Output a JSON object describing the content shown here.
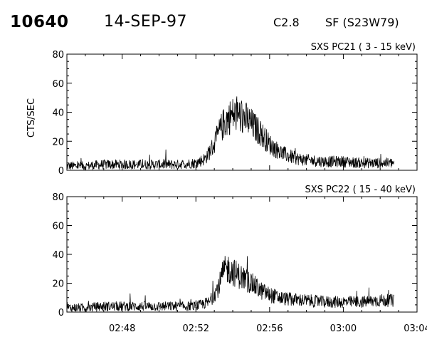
{
  "header": {
    "event_id": "10640",
    "date": "14-SEP-97",
    "flare_class": "C2.8",
    "location": "SF (S23W79)"
  },
  "chart_data": [
    {
      "type": "line",
      "title": "SXS PC21  (  3 - 15 keV)",
      "ylabel": "CTS/SEC",
      "xlabel": "",
      "ylim": [
        0,
        80
      ],
      "xlim": [
        "02:45",
        "03:04"
      ],
      "yticks": [
        "0",
        "20",
        "40",
        "60",
        "80"
      ],
      "xticks": [],
      "grid": false,
      "series": [
        {
          "x": [
            "02:45:00",
            "02:46:00",
            "02:47:00",
            "02:48:00",
            "02:49:00",
            "02:50:00",
            "02:51:00",
            "02:52:00",
            "02:52:30",
            "02:53:00",
            "02:53:15",
            "02:53:30",
            "02:53:45",
            "02:54:00",
            "02:54:15",
            "02:54:30",
            "02:54:45",
            "02:55:00",
            "02:55:30",
            "02:56:00",
            "02:56:30",
            "02:57:00",
            "02:57:30",
            "02:58:00",
            "02:59:00",
            "03:00:00",
            "03:01:00",
            "03:02:00",
            "03:02:45"
          ],
          "values": [
            3,
            3,
            4,
            4,
            4,
            4,
            4,
            5,
            8,
            18,
            26,
            32,
            36,
            38,
            38,
            37,
            35,
            32,
            26,
            18,
            13,
            10,
            8,
            7,
            6,
            6,
            5,
            5,
            5
          ]
        }
      ]
    },
    {
      "type": "line",
      "title": "SXS PC22  ( 15 - 40 keV)",
      "ylabel": "",
      "xlabel": "",
      "ylim": [
        0,
        80
      ],
      "xlim": [
        "02:45",
        "03:04"
      ],
      "yticks": [
        "0",
        "20",
        "40",
        "60",
        "80"
      ],
      "xticks": [
        "02:48",
        "02:52",
        "02:56",
        "03:00",
        "03:04"
      ],
      "grid": false,
      "series": [
        {
          "x": [
            "02:45:00",
            "02:46:00",
            "02:47:00",
            "02:48:00",
            "02:49:00",
            "02:50:00",
            "02:51:00",
            "02:52:00",
            "02:52:45",
            "02:53:15",
            "02:53:30",
            "02:53:45",
            "02:54:00",
            "02:54:30",
            "02:55:00",
            "02:55:30",
            "02:56:00",
            "02:56:30",
            "02:57:00",
            "02:58:00",
            "02:59:00",
            "03:00:00",
            "03:01:00",
            "03:02:00",
            "03:02:45"
          ],
          "values": [
            3,
            3,
            4,
            4,
            4,
            4,
            4,
            4,
            7,
            18,
            28,
            30,
            28,
            24,
            20,
            15,
            12,
            10,
            9,
            8,
            7,
            7,
            7,
            8,
            8
          ]
        }
      ]
    }
  ]
}
